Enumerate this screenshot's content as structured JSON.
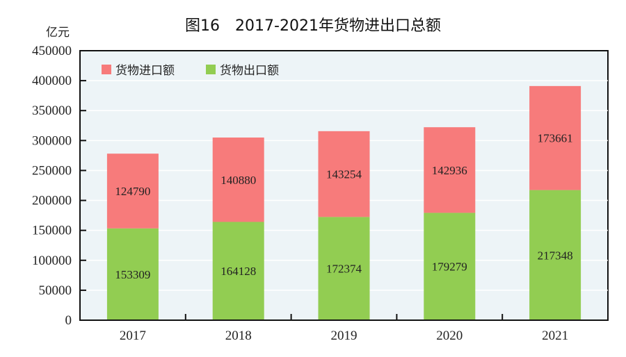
{
  "chart_data": {
    "type": "bar",
    "stacked": true,
    "title": "图16　2017-2021年货物进出口总额",
    "ylabel": "亿元",
    "xlabel": "",
    "categories": [
      "2017",
      "2018",
      "2019",
      "2020",
      "2021"
    ],
    "ylim": [
      0,
      450000
    ],
    "yticks": [
      0,
      50000,
      100000,
      150000,
      200000,
      250000,
      300000,
      350000,
      400000,
      450000
    ],
    "grid": true,
    "legend_position": "top-left",
    "series": [
      {
        "name": "货物出口额",
        "values": [
          153309,
          164128,
          172374,
          179279,
          217348
        ],
        "color": "#92CD52"
      },
      {
        "name": "货物进口额",
        "values": [
          124790,
          140880,
          143254,
          142936,
          173661
        ],
        "color": "#F77B7B"
      }
    ],
    "legend_order": [
      "货物进口额",
      "货物出口额"
    ],
    "plot_background": "#EDF4F7"
  }
}
